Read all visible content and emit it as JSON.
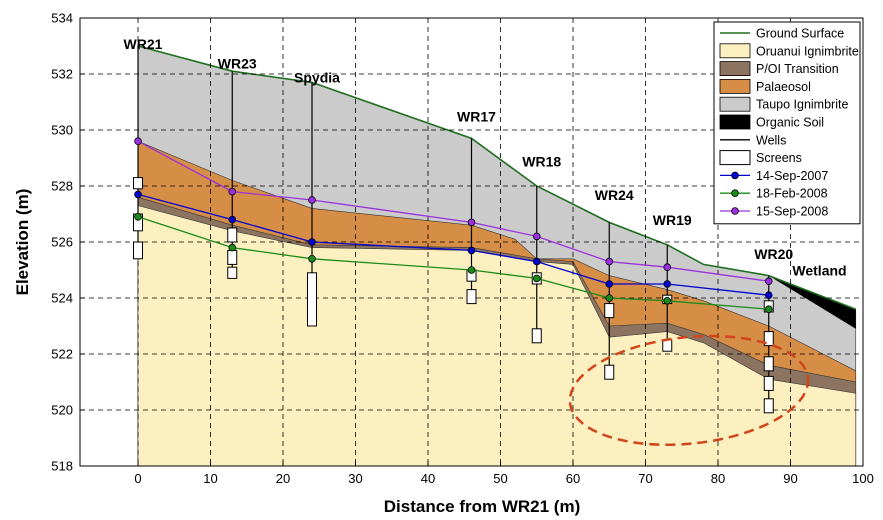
{
  "chart_data": {
    "type": "area",
    "title": "",
    "xlabel": "Distance from WR21 (m)",
    "ylabel": "Elevation (m)",
    "xlim": [
      -8,
      100
    ],
    "ylim": [
      518,
      534
    ],
    "xticks": [
      0,
      10,
      20,
      30,
      40,
      50,
      60,
      70,
      80,
      90,
      100
    ],
    "yticks": [
      518,
      520,
      522,
      524,
      526,
      528,
      530,
      532,
      534
    ],
    "grid": "dashed",
    "legend_position": "top-right",
    "colors": {
      "ground_surface": "#1f6e1f",
      "oruanui": "#fdf0c0",
      "transition": "#8c7460",
      "palaeosol": "#d68d46",
      "taupo": "#cbcbcb",
      "organic": "#000000",
      "sep2007": "#0000d0",
      "feb2008": "#1a8c1a",
      "sep2008": "#9b30e0",
      "ellipse": "#d0451b"
    },
    "ground_surface": {
      "x": [
        0,
        13,
        24,
        46,
        55,
        65,
        73,
        78,
        87,
        99
      ],
      "y": [
        533.0,
        532.1,
        531.7,
        529.7,
        528.0,
        526.7,
        525.9,
        525.2,
        524.8,
        523.6
      ]
    },
    "layers": [
      {
        "name": "Oruanui Ignimbrite",
        "key": "oruanui",
        "top": {
          "x": [
            0,
            13,
            24,
            46,
            55,
            60,
            65,
            73,
            78,
            87,
            99
          ],
          "y": [
            527.3,
            526.4,
            525.8,
            525.7,
            525.3,
            525.2,
            522.6,
            522.8,
            522.4,
            521.1,
            520.6
          ]
        }
      },
      {
        "name": "P/OI Transition",
        "key": "transition",
        "top": {
          "x": [
            0,
            13,
            24,
            46,
            55,
            60,
            65,
            73,
            78,
            87,
            99
          ],
          "y": [
            527.6,
            526.6,
            525.9,
            525.8,
            525.4,
            525.3,
            523.0,
            523.1,
            522.7,
            521.6,
            521.0
          ]
        }
      },
      {
        "name": "Palaeosol",
        "key": "palaeosol",
        "top": {
          "x": [
            0,
            13,
            24,
            46,
            52,
            55,
            60,
            65,
            73,
            78,
            87,
            99
          ],
          "y": [
            529.6,
            528.2,
            527.2,
            526.6,
            526.1,
            525.4,
            525.4,
            524.8,
            524.3,
            523.9,
            523.0,
            521.4
          ]
        }
      },
      {
        "name": "Taupo Ignimbrite",
        "key": "taupo",
        "top": "ground_surface"
      },
      {
        "name": "Organic Soil",
        "key": "organic",
        "bottom": {
          "x": [
            87,
            99
          ],
          "y": [
            524.8,
            522.9
          ]
        }
      }
    ],
    "wells": [
      {
        "name": "WR21",
        "x": 0,
        "bottom": 525.4,
        "screens": [
          [
            527.9,
            528.3
          ],
          [
            526.4,
            527.0
          ],
          [
            525.4,
            526.0
          ]
        ],
        "label_y": 532.9
      },
      {
        "name": "WR23",
        "x": 13,
        "bottom": 524.7,
        "screens": [
          [
            526.0,
            526.5
          ],
          [
            525.2,
            525.7
          ],
          [
            524.7,
            525.1
          ]
        ],
        "label_y": 532.2
      },
      {
        "name": "Spydia",
        "x": 24,
        "bottom": 523.0,
        "screens": [
          [
            523.0,
            524.9
          ]
        ],
        "label_y": 531.7
      },
      {
        "name": "WR17",
        "x": 46,
        "bottom": 523.8,
        "screens": [
          [
            524.6,
            525.0
          ],
          [
            523.8,
            524.3
          ]
        ],
        "label_y": 530.3
      },
      {
        "name": "WR18",
        "x": 55,
        "bottom": 522.4,
        "screens": [
          [
            524.5,
            524.9
          ],
          [
            522.4,
            522.9
          ]
        ],
        "label_y": 528.7
      },
      {
        "name": "WR24",
        "x": 65,
        "bottom": 521.1,
        "screens": [
          [
            523.3,
            523.8
          ],
          [
            521.1,
            521.6
          ]
        ],
        "label_y": 527.5
      },
      {
        "name": "WR19",
        "x": 73,
        "bottom": 522.1,
        "screens": [
          [
            523.8,
            524.1
          ],
          [
            522.1,
            522.5
          ]
        ],
        "label_y": 526.6
      },
      {
        "name": "WR20",
        "x": 87,
        "bottom": 519.9,
        "screens": [
          [
            523.5,
            523.9
          ],
          [
            522.3,
            522.8
          ],
          [
            521.4,
            521.9
          ],
          [
            520.7,
            521.2
          ],
          [
            519.9,
            520.4
          ]
        ],
        "label_y": 525.4
      }
    ],
    "extra_labels": [
      {
        "text": "Wetland",
        "x": 94,
        "y": 524.8
      }
    ],
    "series": [
      {
        "name": "14-Sep-2007",
        "key": "sep2007",
        "x": [
          0,
          13,
          24,
          46,
          55,
          65,
          73,
          87
        ],
        "y": [
          527.7,
          526.8,
          526.0,
          525.7,
          525.3,
          524.5,
          524.5,
          524.1
        ]
      },
      {
        "name": "18-Feb-2008",
        "key": "feb2008",
        "x": [
          0,
          13,
          24,
          46,
          55,
          65,
          73,
          87
        ],
        "y": [
          526.9,
          525.8,
          525.4,
          525.0,
          524.7,
          524.0,
          523.9,
          523.6
        ]
      },
      {
        "name": "15-Sep-2008",
        "key": "sep2008",
        "x": [
          0,
          13,
          24,
          46,
          55,
          65,
          73,
          87
        ],
        "y": [
          529.6,
          527.8,
          527.5,
          526.7,
          526.2,
          525.3,
          525.1,
          524.6
        ]
      }
    ],
    "annotation_ellipse": {
      "center": [
        76,
        520.7
      ],
      "radii": [
        16.5,
        1.9
      ],
      "style": "dashed"
    },
    "legend": [
      {
        "label": "Ground Surface",
        "kind": "line",
        "key": "ground_surface"
      },
      {
        "label": "Oruanui Ignimbrite",
        "kind": "patch",
        "key": "oruanui"
      },
      {
        "label": "P/OI Transition",
        "kind": "patch",
        "key": "transition"
      },
      {
        "label": "Palaeosol",
        "kind": "patch",
        "key": "palaeosol"
      },
      {
        "label": "Taupo Ignimbrite",
        "kind": "patch",
        "key": "taupo"
      },
      {
        "label": "Organic Soil",
        "kind": "patch",
        "key": "organic"
      },
      {
        "label": "Wells",
        "kind": "line",
        "key": "wells"
      },
      {
        "label": "Screens",
        "kind": "screen",
        "key": "screens"
      },
      {
        "label": "14-Sep-2007",
        "kind": "marker-line",
        "key": "sep2007"
      },
      {
        "label": "18-Feb-2008",
        "kind": "marker-line",
        "key": "feb2008"
      },
      {
        "label": "15-Sep-2008",
        "kind": "marker-line",
        "key": "sep2008"
      }
    ]
  }
}
